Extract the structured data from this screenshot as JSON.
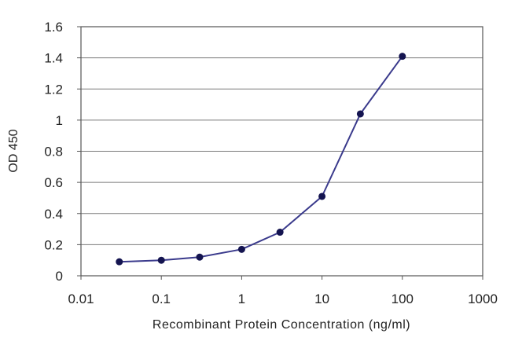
{
  "chart_data": {
    "type": "line",
    "xlabel": "Recombinant Protein Concentration (ng/ml)",
    "ylabel": "OD 450",
    "x_scale": "log",
    "xlim": [
      0.01,
      1000
    ],
    "ylim": [
      0,
      1.6
    ],
    "x_ticks": [
      "0.01",
      "0.1",
      "1",
      "10",
      "100",
      "1000"
    ],
    "y_ticks": [
      "0",
      "0.2",
      "0.4",
      "0.6",
      "0.8",
      "1",
      "1.2",
      "1.4",
      "1.6"
    ],
    "grid": "horizontal",
    "series": [
      {
        "x": [
          0.03,
          0.1,
          0.3,
          1,
          3,
          10,
          30,
          100
        ],
        "y": [
          0.09,
          0.1,
          0.12,
          0.17,
          0.28,
          0.51,
          1.04,
          1.41
        ]
      }
    ],
    "colors": {
      "line": "#3a3a8c",
      "marker": "#141450",
      "grid": "#7a7a7a",
      "frame": "#555555"
    }
  }
}
